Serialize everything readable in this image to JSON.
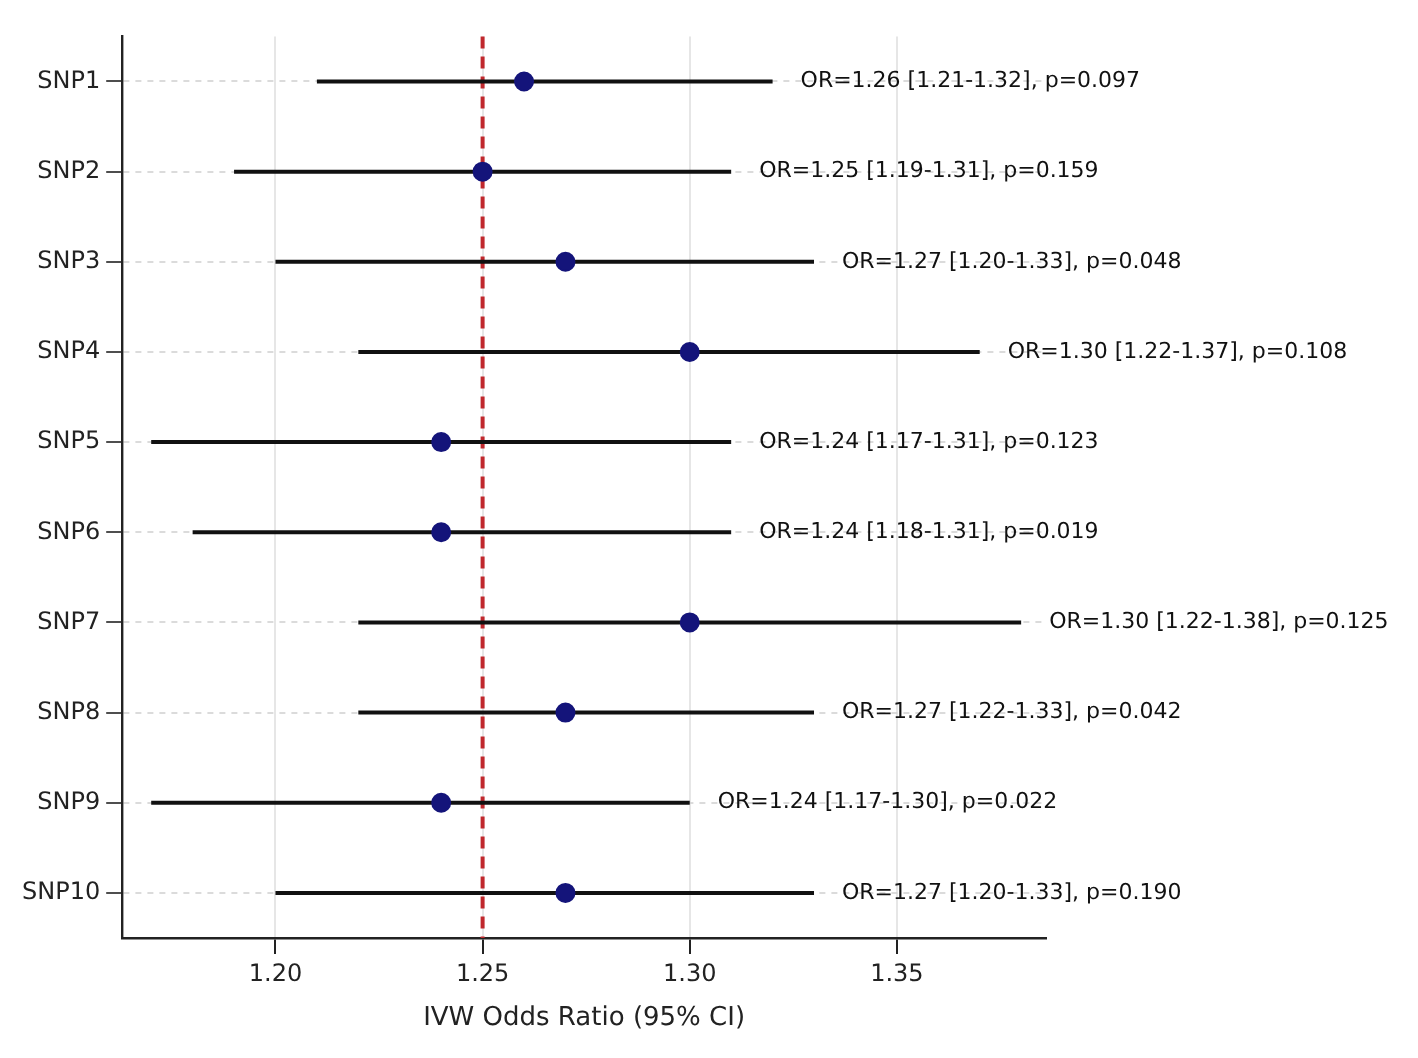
{
  "chart_data": {
    "type": "scatter",
    "orientation": "horizontal",
    "xlabel": "IVW Odds Ratio (95% CI)",
    "categories": [
      "SNP1",
      "SNP2",
      "SNP3",
      "SNP4",
      "SNP5",
      "SNP6",
      "SNP7",
      "SNP8",
      "SNP9",
      "SNP10"
    ],
    "values": [
      1.26,
      1.25,
      1.27,
      1.3,
      1.24,
      1.24,
      1.3,
      1.27,
      1.24,
      1.27
    ],
    "errors": [
      [
        1.21,
        1.32
      ],
      [
        1.19,
        1.31
      ],
      [
        1.2,
        1.33
      ],
      [
        1.22,
        1.37
      ],
      [
        1.17,
        1.31
      ],
      [
        1.18,
        1.31
      ],
      [
        1.22,
        1.38
      ],
      [
        1.22,
        1.33
      ],
      [
        1.17,
        1.3
      ],
      [
        1.2,
        1.33
      ]
    ],
    "annotations": [
      {
        "text": "OR=1.26 [1.21-1.32], p=0.097",
        "x": 1.32,
        "y": "SNP1"
      },
      {
        "text": "OR=1.25 [1.19-1.31], p=0.159",
        "x": 1.31,
        "y": "SNP2"
      },
      {
        "text": "OR=1.27 [1.20-1.33], p=0.048",
        "x": 1.33,
        "y": "SNP3"
      },
      {
        "text": "OR=1.30 [1.22-1.37], p=0.108",
        "x": 1.37,
        "y": "SNP4"
      },
      {
        "text": "OR=1.24 [1.17-1.31], p=0.123",
        "x": 1.31,
        "y": "SNP5"
      },
      {
        "text": "OR=1.24 [1.18-1.31], p=0.019",
        "x": 1.31,
        "y": "SNP6"
      },
      {
        "text": "OR=1.30 [1.22-1.38], p=0.125",
        "x": 1.38,
        "y": "SNP7"
      },
      {
        "text": "OR=1.27 [1.22-1.33], p=0.042",
        "x": 1.33,
        "y": "SNP8"
      },
      {
        "text": "OR=1.24 [1.17-1.30], p=0.022",
        "x": 1.3,
        "y": "SNP9"
      },
      {
        "text": "OR=1.27 [1.20-1.33], p=0.190",
        "x": 1.33,
        "y": "SNP10"
      }
    ],
    "color": "#14147a",
    "marker": "circle",
    "xlim": [
      1.163,
      1.386
    ],
    "xticks": [
      {
        "value": 1.2,
        "label": "1.20"
      },
      {
        "value": 1.25,
        "label": "1.25"
      },
      {
        "value": 1.3,
        "label": "1.30"
      },
      {
        "value": 1.35,
        "label": "1.35"
      }
    ],
    "ref_lines": [
      {
        "axis": "x",
        "value": 1.25,
        "color": "#c0282d",
        "line_style": "dashed"
      }
    ],
    "grid": true
  }
}
